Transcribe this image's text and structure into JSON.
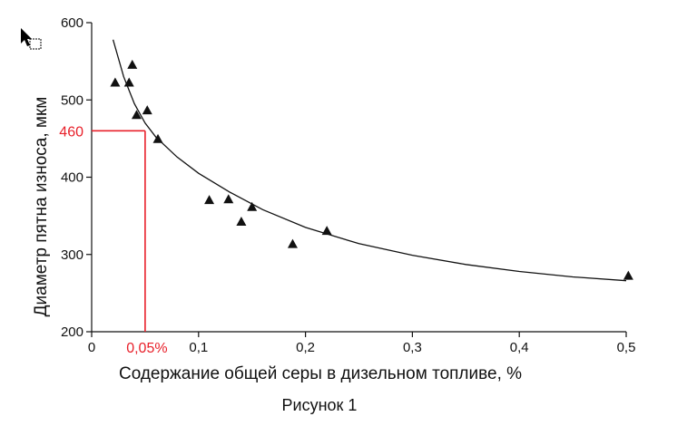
{
  "chart_data": {
    "type": "scatter",
    "xlabel": "Содержание общей серы в дизельном топливе, %",
    "ylabel": "Диаметр пятна износа, мкм",
    "xlim": [
      0,
      0.5
    ],
    "ylim": [
      200,
      600
    ],
    "x_ticks": [
      "0",
      "0,1",
      "0,2",
      "0,3",
      "0,4",
      "0,5"
    ],
    "x_tick_values": [
      0,
      0.1,
      0.2,
      0.3,
      0.4,
      0.5
    ],
    "y_ticks": [
      "200",
      "300",
      "400",
      "500",
      "600"
    ],
    "y_tick_values": [
      200,
      300,
      400,
      500,
      600
    ],
    "points": [
      {
        "x": 0.022,
        "y": 522
      },
      {
        "x": 0.035,
        "y": 522
      },
      {
        "x": 0.038,
        "y": 545
      },
      {
        "x": 0.042,
        "y": 480
      },
      {
        "x": 0.052,
        "y": 486
      },
      {
        "x": 0.062,
        "y": 449
      },
      {
        "x": 0.11,
        "y": 370
      },
      {
        "x": 0.128,
        "y": 371
      },
      {
        "x": 0.14,
        "y": 342
      },
      {
        "x": 0.15,
        "y": 361
      },
      {
        "x": 0.188,
        "y": 313
      },
      {
        "x": 0.22,
        "y": 330
      },
      {
        "x": 0.502,
        "y": 272
      }
    ],
    "trend_line": {
      "x": [
        0.02,
        0.03,
        0.04,
        0.05,
        0.06,
        0.08,
        0.1,
        0.13,
        0.16,
        0.2,
        0.25,
        0.3,
        0.35,
        0.4,
        0.45,
        0.5
      ],
      "y": [
        578,
        530,
        495,
        470,
        452,
        426,
        405,
        380,
        358,
        335,
        314,
        299,
        287,
        278,
        271,
        266
      ]
    },
    "annotation": {
      "x": 0.05,
      "y": 460,
      "x_label": "0,05%",
      "y_label": "460",
      "color": "#e8202a"
    },
    "caption": "Рисунок 1",
    "grid": false
  }
}
